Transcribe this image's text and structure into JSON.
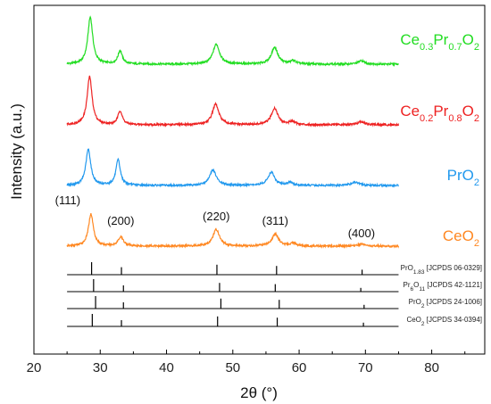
{
  "chart_data": {
    "type": "line",
    "xlabel": "2θ (°)",
    "ylabel": "Intensity (a.u.)",
    "xlim": [
      20,
      88
    ],
    "xticks": [
      20,
      30,
      40,
      50,
      60,
      70,
      80
    ],
    "x_range": [
      25,
      75
    ],
    "series": [
      {
        "label_main": [
          "Ce",
          "Pr",
          "O"
        ],
        "label_sub": [
          "0.3",
          "0.7",
          "2"
        ],
        "color": "#22dd22",
        "peaks": [
          [
            28.5,
            8.5,
            0.45
          ],
          [
            33.0,
            2.4,
            0.4
          ],
          [
            47.5,
            3.6,
            0.6
          ],
          [
            56.3,
            3.0,
            0.6
          ],
          [
            59.1,
            0.6,
            0.5
          ],
          [
            69.4,
            0.6,
            0.6
          ]
        ]
      },
      {
        "label_main": [
          "Ce",
          "Pr",
          "O"
        ],
        "label_sub": [
          "0.2",
          "0.8",
          "2"
        ],
        "color": "#ee2222",
        "peaks": [
          [
            28.4,
            8.7,
            0.45
          ],
          [
            33.0,
            2.5,
            0.4
          ],
          [
            47.4,
            3.7,
            0.6
          ],
          [
            56.3,
            3.0,
            0.6
          ],
          [
            59.0,
            0.6,
            0.5
          ],
          [
            69.3,
            0.6,
            0.6
          ]
        ]
      },
      {
        "label_main": [
          "PrO"
        ],
        "label_sub": [
          "2"
        ],
        "color": "#2299ee",
        "peaks": [
          [
            28.2,
            6.5,
            0.45
          ],
          [
            32.7,
            4.6,
            0.4
          ],
          [
            47.0,
            2.8,
            0.6
          ],
          [
            55.8,
            2.4,
            0.6
          ],
          [
            58.6,
            0.5,
            0.5
          ],
          [
            68.5,
            0.6,
            0.7
          ]
        ]
      },
      {
        "label_main": [
          "CeO"
        ],
        "label_sub": [
          "2"
        ],
        "color": "#ff8822",
        "peaks": [
          [
            28.6,
            5.8,
            0.45
          ],
          [
            33.1,
            1.6,
            0.5
          ],
          [
            47.5,
            3.0,
            0.6
          ],
          [
            56.4,
            2.2,
            0.6
          ],
          [
            59.1,
            0.5,
            0.5
          ],
          [
            69.4,
            0.4,
            0.6
          ]
        ]
      }
    ],
    "hkl_labels": [
      {
        "text": "(111)",
        "x": 28.6
      },
      {
        "text": "(200)",
        "x": 33.1
      },
      {
        "text": "(220)",
        "x": 47.5
      },
      {
        "text": "(311)",
        "x": 56.4
      },
      {
        "text": "(400)",
        "x": 69.4
      }
    ],
    "references": [
      {
        "label_parts": [
          [
            "PrO",
            ""
          ],
          [
            "1.83",
            "sub"
          ],
          [
            " [JCPDS 06-0329]",
            ""
          ]
        ],
        "lines": [
          [
            28.7,
            1.0
          ],
          [
            33.2,
            0.6
          ],
          [
            47.6,
            0.8
          ],
          [
            56.6,
            0.7
          ],
          [
            69.5,
            0.4
          ]
        ]
      },
      {
        "label_parts": [
          [
            "Pr",
            ""
          ],
          [
            "6",
            "sub"
          ],
          [
            "O",
            ""
          ],
          [
            "11",
            "sub"
          ],
          [
            " [JCPDS 42-1121]",
            ""
          ]
        ],
        "lines": [
          [
            29.0,
            1.0
          ],
          [
            33.5,
            0.5
          ],
          [
            48.0,
            0.7
          ],
          [
            56.4,
            0.6
          ],
          [
            69.3,
            0.3
          ]
        ]
      },
      {
        "label_parts": [
          [
            "PrO",
            ""
          ],
          [
            "2",
            "sub"
          ],
          [
            " [JCPDS 24-1006]",
            ""
          ]
        ],
        "lines": [
          [
            29.3,
            1.0
          ],
          [
            33.5,
            0.5
          ],
          [
            48.2,
            0.8
          ],
          [
            57.0,
            0.7
          ],
          [
            69.8,
            0.3
          ]
        ]
      },
      {
        "label_parts": [
          [
            "CeO",
            ""
          ],
          [
            "2",
            "sub"
          ],
          [
            " [JCPDS 34-0394]",
            ""
          ]
        ],
        "lines": [
          [
            28.8,
            1.0
          ],
          [
            33.2,
            0.5
          ],
          [
            47.7,
            0.8
          ],
          [
            56.7,
            0.7
          ],
          [
            69.7,
            0.3
          ]
        ]
      }
    ]
  }
}
